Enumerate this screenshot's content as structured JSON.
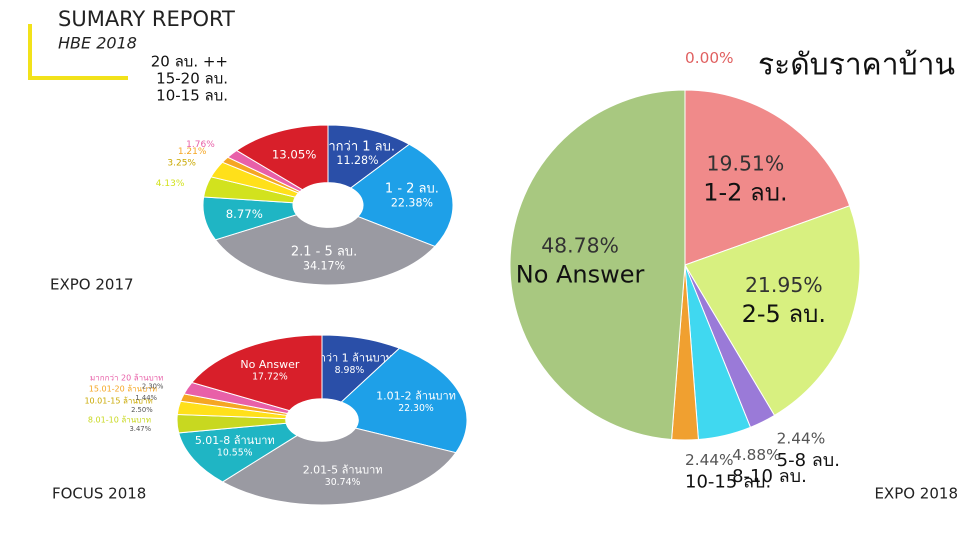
{
  "header": {
    "title": "SUMARY REPORT",
    "subtitle": "HBE 2018"
  },
  "chart_data": [
    {
      "type": "donut",
      "caption": "EXPO 2017",
      "annotations": [
        "20 ลบ. ++",
        "15-20 ลบ.",
        "10-15 ลบ."
      ],
      "categories": [
        "ต่ำกว่า 1 ลบ.",
        "1 - 2 ลบ.",
        "2.1 - 5 ลบ.",
        null,
        null,
        null,
        null,
        null,
        null
      ],
      "values": [
        11.28,
        22.38,
        34.17,
        8.77,
        4.13,
        3.25,
        1.21,
        1.76,
        13.05
      ],
      "value_labels": [
        "11.28%",
        "22.38%",
        "34.17%",
        "8.77%",
        "4.13%",
        "3.25%",
        "1.21%",
        "1.76%",
        "13.05%"
      ],
      "colors": [
        "#2a4fa8",
        "#1ea0e8",
        "#9a9aa2",
        "#1fb5c4",
        "#d2e21e",
        "#ffe01a",
        "#f5a623",
        "#e860a8",
        "#d81f2a"
      ]
    },
    {
      "type": "donut",
      "caption": "FOCUS 2018",
      "categories": [
        "ต่ำกว่า 1 ล้านบาท",
        "1.01-2 ล้านบาท",
        "2.01-5 ล้านบาท",
        "5.01-8 ล้านบาท",
        "8.01-10 ล้านบาท",
        "10.01-15 ล้านบาท",
        "15.01-20 ล้านบาท",
        "มากกว่า 20 ล้านบาท",
        "No Answer"
      ],
      "values": [
        8.98,
        22.3,
        30.74,
        10.55,
        3.47,
        2.5,
        1.44,
        2.3,
        17.72
      ],
      "value_labels": [
        "8.98%",
        "22.30%",
        "30.74%",
        "10.55%",
        "3.47%",
        "2.50%",
        "1.44%",
        "2.30%",
        "17.72%"
      ],
      "colors": [
        "#2a4fa8",
        "#1ea0e8",
        "#9a9aa2",
        "#1fb5c4",
        "#c8d820",
        "#ffe01a",
        "#f5a623",
        "#e860a8",
        "#d81f2a"
      ]
    },
    {
      "type": "pie",
      "title": "ระดับราคาบ้าน",
      "caption": "EXPO 2018",
      "categories": [
        null,
        "1-2 ลบ.",
        "2-5 ลบ.",
        "5-8 ลบ.",
        "8-10 ลบ.",
        "10-15 ลบ.",
        "No Answer"
      ],
      "values": [
        0,
        19.51,
        21.95,
        2.44,
        4.88,
        2.44,
        48.78
      ],
      "value_labels": [
        "0.00%",
        "19.51%",
        "21.95%",
        "2.44%",
        "4.88%",
        "2.44%",
        "48.78%"
      ],
      "colors": [
        "#e06060",
        "#f08a8a",
        "#d8f080",
        "#9a7ad8",
        "#40d8f0",
        "#f0a030",
        "#a8c880"
      ]
    }
  ]
}
